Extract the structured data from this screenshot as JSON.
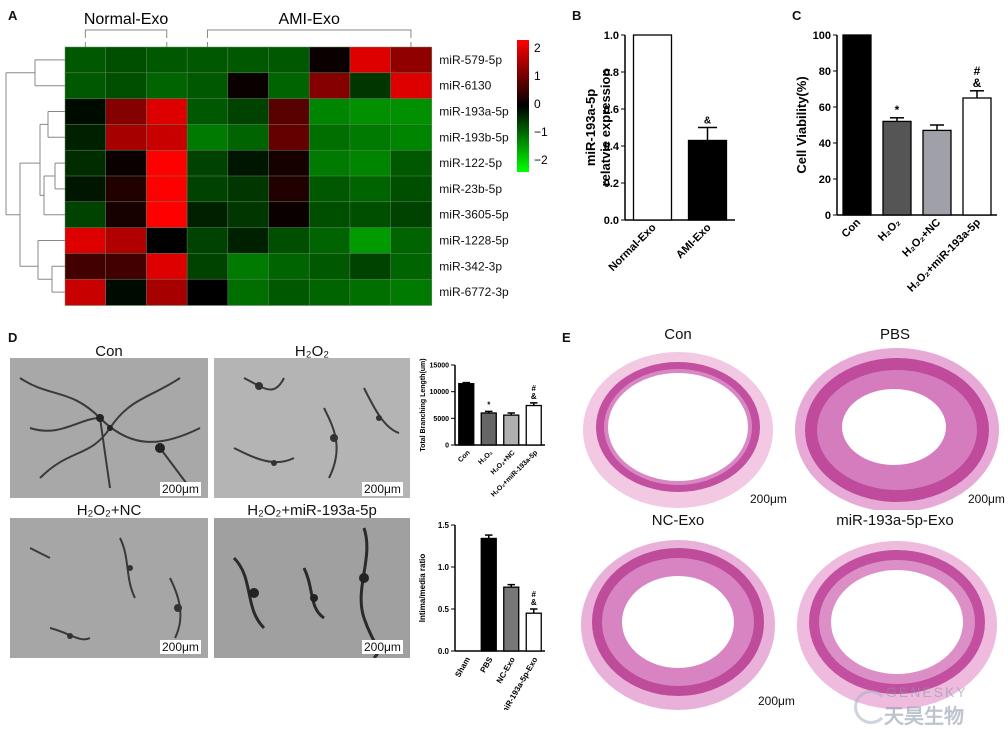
{
  "panels": {
    "A": "A",
    "B": "B",
    "C": "C",
    "D": "D",
    "E": "E"
  },
  "heatmap": {
    "group_normal": "Normal-Exo",
    "group_ami": "AMI-Exo",
    "rows": [
      "miR-579-5p",
      "miR-6130",
      "miR-193a-5p",
      "miR-193b-5p",
      "miR-122-5p",
      "miR-23b-5p",
      "miR-3605-5p",
      "miR-1228-5p",
      "miR-342-3p",
      "miR-6772-3p"
    ],
    "values": [
      [
        -0.8,
        -0.7,
        -0.8,
        -0.8,
        -0.8,
        -0.8,
        0.1,
        2.0,
        1.3
      ],
      [
        -0.8,
        -0.7,
        -0.9,
        -0.8,
        0.1,
        -0.9,
        1.2,
        -0.5,
        2.0
      ],
      [
        -0.1,
        1.2,
        2.0,
        -0.8,
        -0.6,
        0.8,
        -1.2,
        -1.3,
        -1.3
      ],
      [
        -0.3,
        1.5,
        1.8,
        -1.1,
        -0.9,
        0.9,
        -1.0,
        -1.1,
        -1.2
      ],
      [
        -0.4,
        0.1,
        2.3,
        -0.6,
        -0.2,
        0.2,
        -1.1,
        -1.2,
        -0.8
      ],
      [
        -0.2,
        0.3,
        2.3,
        -0.6,
        -0.5,
        0.3,
        -0.8,
        -0.9,
        -0.7
      ],
      [
        -0.6,
        0.2,
        2.3,
        -0.3,
        -0.5,
        0.1,
        -0.7,
        -0.7,
        -0.6
      ],
      [
        2.0,
        1.6,
        0.0,
        -0.6,
        -0.3,
        -0.7,
        -0.9,
        -1.4,
        -0.9
      ],
      [
        0.6,
        0.6,
        2.0,
        -0.6,
        -1.1,
        -0.9,
        -0.8,
        -0.6,
        -0.9
      ],
      [
        1.8,
        -0.1,
        1.5,
        0.0,
        -1.0,
        -0.8,
        -0.9,
        -1.0,
        -1.1
      ]
    ],
    "legend_ticks": [
      "2",
      "1",
      "0",
      "−1",
      "−2"
    ],
    "colors": {
      "high": "#ff0000",
      "mid": "#000000",
      "low": "#00ff00"
    }
  },
  "chart_data": [
    {
      "type": "bar",
      "panel": "B",
      "categories": [
        "Normal-Exo",
        "AMI-Exo"
      ],
      "values": [
        1.0,
        0.43
      ],
      "errors": [
        0,
        0.07
      ],
      "annotations": [
        "",
        "&"
      ],
      "ylabel": "miR-193a-5p relatvie expression",
      "ylim": [
        0,
        1.0
      ],
      "yticks": [
        "0.0",
        "0.2",
        "0.4",
        "0.6",
        "0.8",
        "1.0"
      ],
      "fills": [
        "#ffffff",
        "#000000"
      ]
    },
    {
      "type": "bar",
      "panel": "C",
      "categories": [
        "Con",
        "H2O2",
        "H2O2+NC",
        "H2O2+miR-193a-5p"
      ],
      "values": [
        100,
        52,
        47,
        65
      ],
      "errors": [
        0,
        2,
        3,
        4
      ],
      "annotations": [
        "",
        "*",
        "",
        "#\n&"
      ],
      "ylabel": "Cell Viability(%)",
      "ylim": [
        0,
        100
      ],
      "yticks": [
        "0",
        "20",
        "40",
        "60",
        "80",
        "100"
      ],
      "fills": [
        "#000000",
        "#555555",
        "#a0a0a8",
        "#ffffff"
      ]
    },
    {
      "type": "bar",
      "panel": "D-top",
      "categories": [
        "Con",
        "H2O2",
        "H2O2+NC",
        "H2O2+miR-193a-5p"
      ],
      "values": [
        11500,
        6000,
        5600,
        7400
      ],
      "errors": [
        200,
        300,
        400,
        500
      ],
      "annotations": [
        "",
        "*",
        "",
        "#\n&"
      ],
      "ylabel": "Total Branching Length(um)",
      "ylim": [
        0,
        15000
      ],
      "yticks": [
        "0",
        "5000",
        "10000",
        "15000"
      ],
      "fills": [
        "#000000",
        "#666666",
        "#b0b0b0",
        "#ffffff"
      ]
    },
    {
      "type": "bar",
      "panel": "D-bottom",
      "categories": [
        "Sham",
        "PBS",
        "NC-Exo",
        "miR-193a-5p-Exo"
      ],
      "values": [
        0,
        1.34,
        0.76,
        0.45
      ],
      "errors": [
        0,
        0.04,
        0.03,
        0.05
      ],
      "annotations": [
        "",
        "",
        "",
        "#\n&"
      ],
      "ylabel": "Intima/media ratio",
      "ylim": [
        0,
        1.5
      ],
      "yticks": [
        "0.0",
        "0.5",
        "1.0",
        "1.5"
      ],
      "fills": [
        "#ffffff",
        "#000000",
        "#777777",
        "#ffffff"
      ]
    }
  ],
  "micrographs": {
    "labels": [
      "Con",
      "H₂O₂",
      "H₂O₂+NC",
      "H₂O₂+miR-193a-5p"
    ],
    "scale": "200μm"
  },
  "histology": {
    "labels": [
      "Con",
      "PBS",
      "NC-Exo",
      "miR-193a-5p-Exo"
    ],
    "scale": "200μm"
  },
  "watermark": {
    "latin": "GENESKY",
    "chinese": "天昊生物"
  }
}
